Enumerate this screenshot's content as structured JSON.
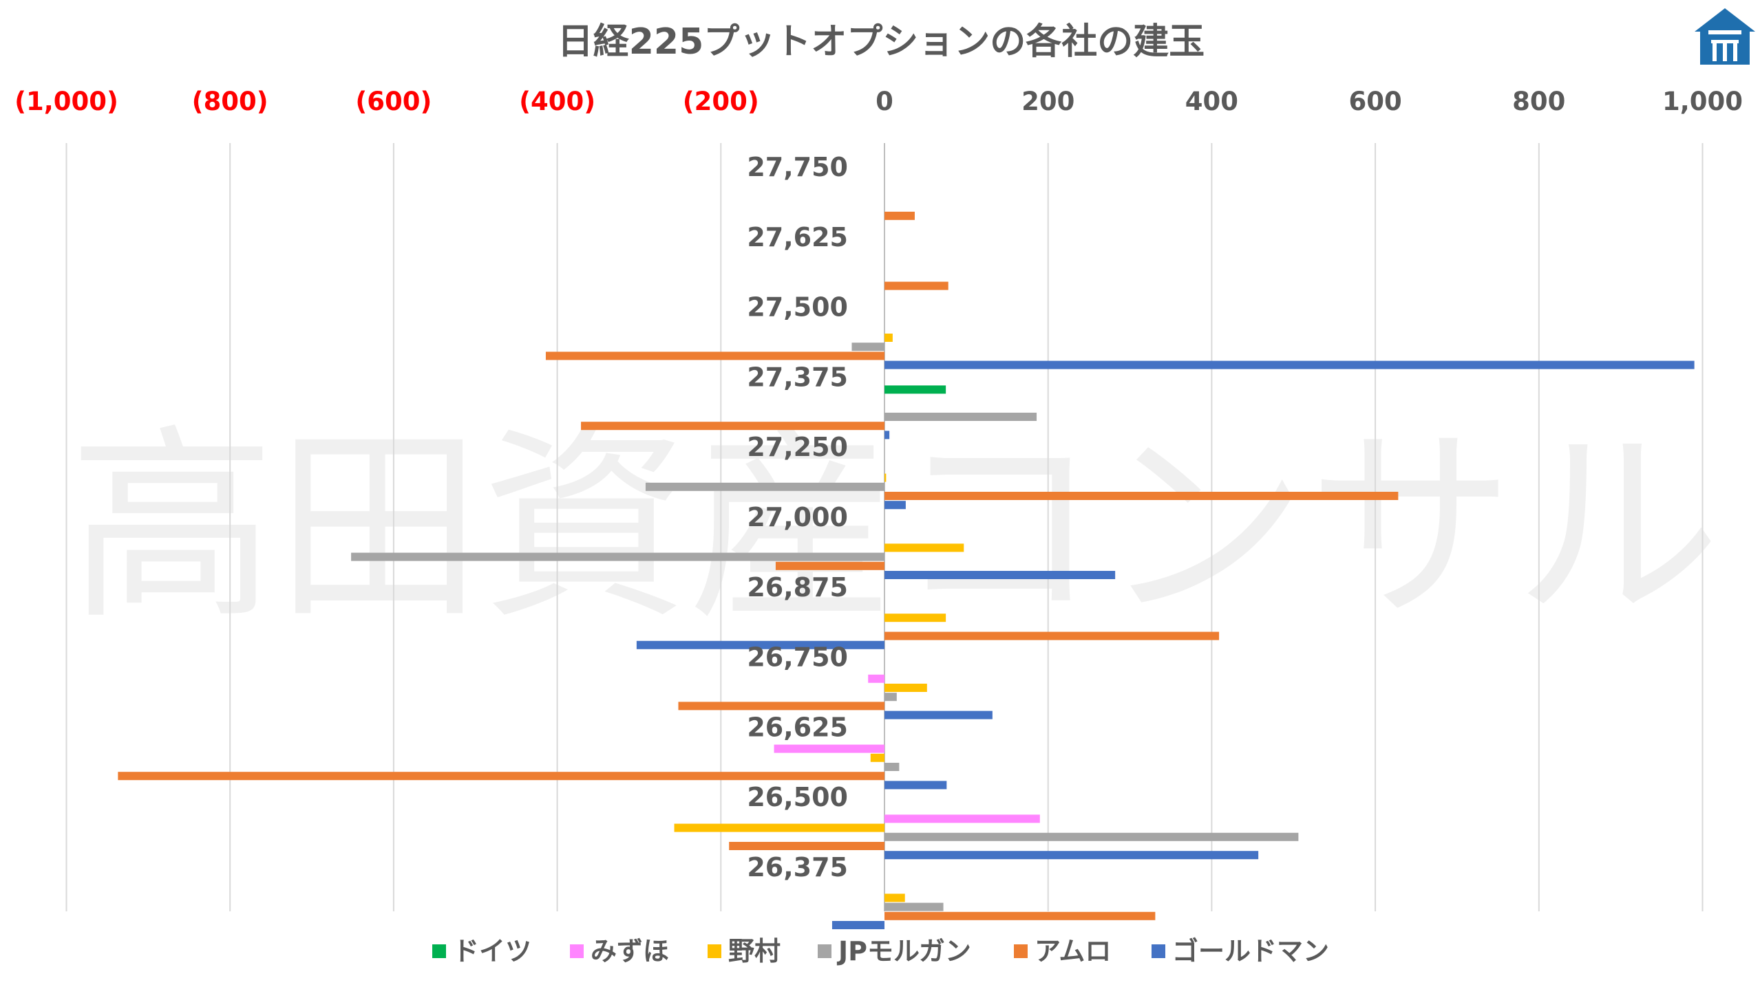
{
  "watermark": "高田資産コンサル",
  "logo": {
    "icon": "house-logo-icon",
    "color": "#1f6fae"
  },
  "chart_data": {
    "type": "bar",
    "orientation": "horizontal",
    "title": "日経225プットオプションの各社の建玉",
    "xlim": [
      -1000,
      1000
    ],
    "ticks": [
      {
        "value": -1000,
        "label": "(1,000)"
      },
      {
        "value": -800,
        "label": "(800)"
      },
      {
        "value": -600,
        "label": "(600)"
      },
      {
        "value": -400,
        "label": "(400)"
      },
      {
        "value": -200,
        "label": "(200)"
      },
      {
        "value": 0,
        "label": "0"
      },
      {
        "value": 200,
        "label": "200"
      },
      {
        "value": 400,
        "label": "400"
      },
      {
        "value": 600,
        "label": "600"
      },
      {
        "value": 800,
        "label": "800"
      },
      {
        "value": 1000,
        "label": "1,000"
      }
    ],
    "negative_tick_color": "#ff0000",
    "positive_tick_color": "#595959",
    "gridlines": true,
    "legend_position": "bottom",
    "categories": [
      "27,750",
      "27,625",
      "27,500",
      "27,375",
      "27,250",
      "27,000",
      "26,875",
      "26,750",
      "26,625",
      "26,500",
      "26,375"
    ],
    "series": [
      {
        "name": "ドイツ",
        "color": "#00b050",
        "values": [
          0,
          0,
          0,
          75,
          0,
          0,
          0,
          0,
          0,
          0,
          0
        ]
      },
      {
        "name": "みずほ",
        "color": "#ff85ff",
        "values": [
          0,
          0,
          0,
          0,
          0,
          0,
          0,
          -20,
          -135,
          190,
          0
        ]
      },
      {
        "name": "野村",
        "color": "#ffc000",
        "values": [
          0,
          0,
          10,
          0,
          2,
          97,
          75,
          52,
          -17,
          -257,
          25
        ]
      },
      {
        "name": "JPモルガン",
        "color": "#a5a5a5",
        "values": [
          0,
          0,
          -40,
          186,
          -292,
          -652,
          0,
          15,
          18,
          506,
          72
        ]
      },
      {
        "name": "アムロ",
        "color": "#ed7d31",
        "values": [
          37,
          78,
          -414,
          -371,
          628,
          -133,
          409,
          -252,
          -937,
          -190,
          331
        ]
      },
      {
        "name": "ゴールドマン",
        "color": "#4472c4",
        "values": [
          0,
          0,
          990,
          6,
          26,
          282,
          -303,
          132,
          76,
          457,
          -64
        ]
      }
    ]
  }
}
